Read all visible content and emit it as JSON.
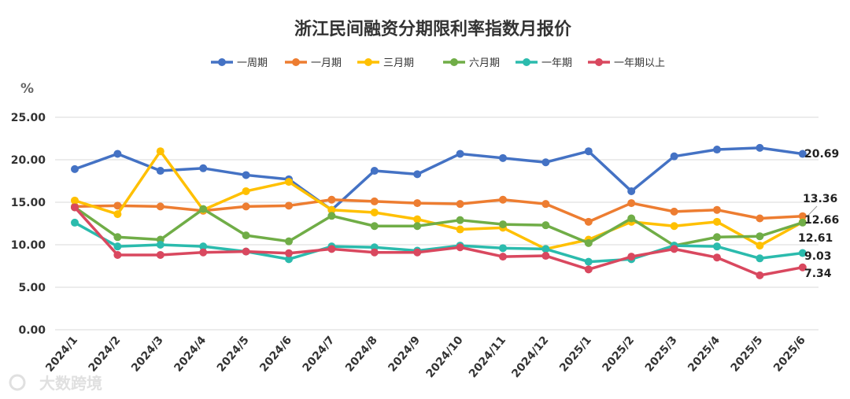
{
  "chart_data": {
    "type": "line",
    "title": "浙江民间融资分期限利率指数月报价",
    "ylabel": "%",
    "ylim": [
      0,
      25
    ],
    "yticks": [
      "0.00",
      "5.00",
      "10.00",
      "15.00",
      "20.00",
      "25.00"
    ],
    "grid": true,
    "legend_position": "top",
    "categories": [
      "2024/1",
      "2024/2",
      "2024/3",
      "2024/4",
      "2024/5",
      "2024/6",
      "2024/7",
      "2024/8",
      "2024/9",
      "2024/10",
      "2024/11",
      "2024/12",
      "2025/1",
      "2025/2",
      "2025/3",
      "2025/4",
      "2025/5",
      "2025/6"
    ],
    "series": [
      {
        "name": "一周期",
        "color": "#4472C4",
        "end_label": "20.69",
        "values": [
          18.9,
          20.7,
          18.7,
          19.0,
          18.2,
          17.7,
          14.1,
          18.7,
          18.3,
          20.7,
          20.2,
          19.7,
          21.0,
          16.3,
          20.4,
          21.2,
          21.4,
          20.69
        ]
      },
      {
        "name": "一月期",
        "color": "#ED7D31",
        "end_label": "13.36",
        "values": [
          14.5,
          14.6,
          14.5,
          14.0,
          14.5,
          14.6,
          15.3,
          15.1,
          14.9,
          14.8,
          15.3,
          14.8,
          12.7,
          14.9,
          13.9,
          14.1,
          13.1,
          13.36
        ]
      },
      {
        "name": "三月期",
        "color": "#FFC000",
        "end_label": "12.66",
        "values": [
          15.2,
          13.6,
          21.0,
          14.1,
          16.3,
          17.4,
          14.1,
          13.8,
          13.0,
          11.8,
          12.0,
          9.5,
          10.6,
          12.7,
          12.2,
          12.7,
          9.9,
          12.66
        ]
      },
      {
        "name": "六月期",
        "color": "#70AD47",
        "end_label": "12.61",
        "values": [
          14.4,
          10.9,
          10.6,
          14.2,
          11.1,
          10.4,
          13.4,
          12.2,
          12.2,
          12.9,
          12.4,
          12.3,
          10.2,
          13.1,
          9.9,
          10.9,
          11.0,
          12.61
        ]
      },
      {
        "name": "一年期",
        "color": "#2BBBAD",
        "end_label": "9.03",
        "values": [
          12.6,
          9.8,
          10.0,
          9.8,
          9.2,
          8.3,
          9.8,
          9.7,
          9.3,
          9.9,
          9.6,
          9.5,
          8.0,
          8.3,
          9.9,
          9.8,
          8.4,
          9.03
        ]
      },
      {
        "name": "一年期以上",
        "color": "#D9485F",
        "end_label": "7.34",
        "values": [
          14.4,
          8.8,
          8.8,
          9.1,
          9.2,
          9.0,
          9.5,
          9.1,
          9.1,
          9.7,
          8.6,
          8.7,
          7.1,
          8.6,
          9.5,
          8.5,
          6.4,
          7.34
        ]
      }
    ]
  },
  "watermark": "大数跨境"
}
